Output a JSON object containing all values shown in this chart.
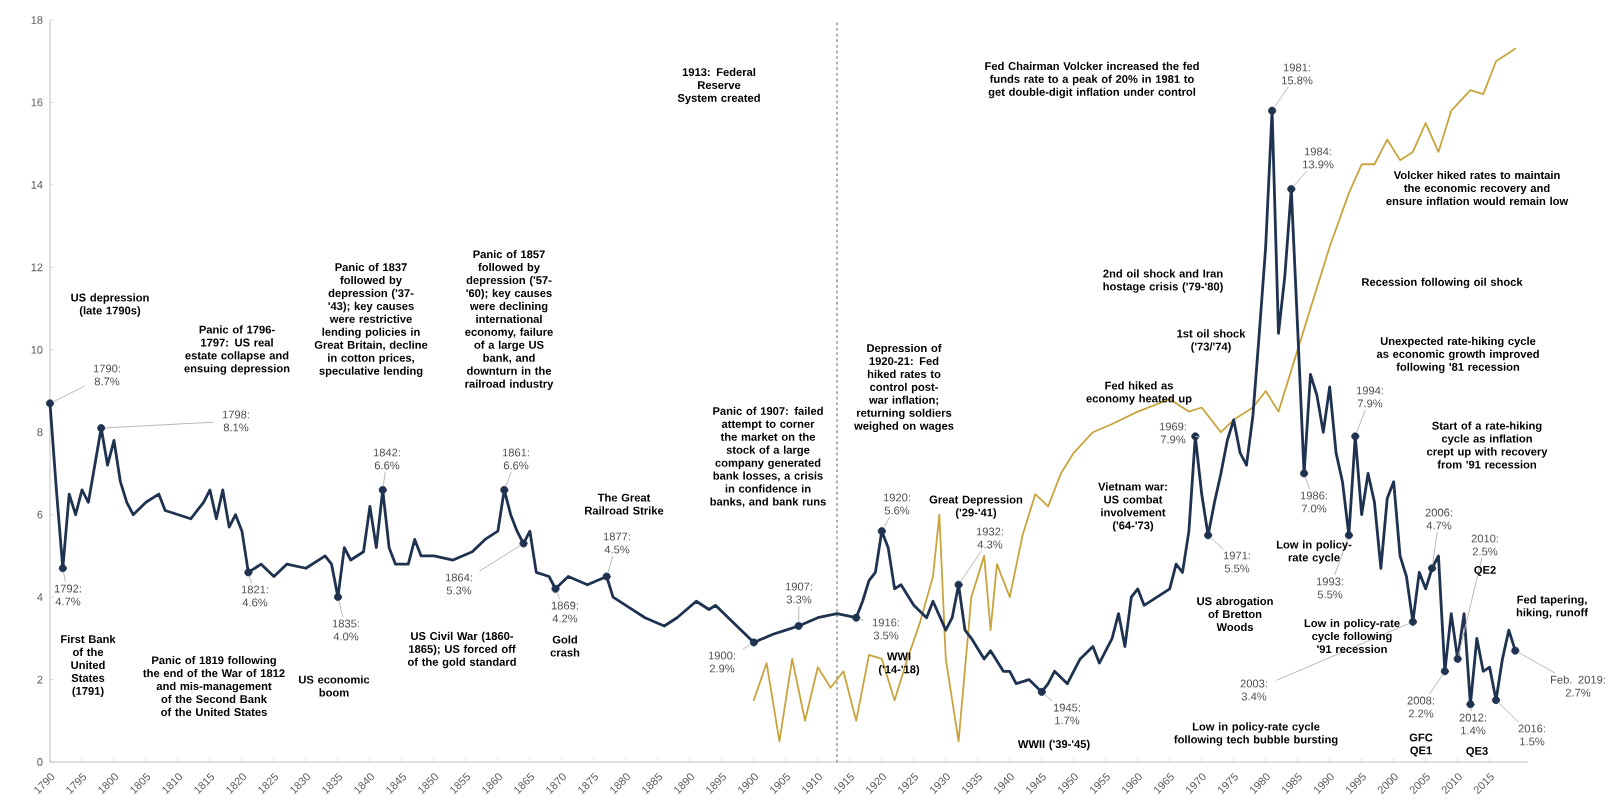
{
  "chart_data": {
    "type": "line",
    "xlim": [
      1790,
      2021
    ],
    "ylim": [
      0,
      18
    ],
    "xticks": [
      1790,
      1795,
      1800,
      1805,
      1810,
      1815,
      1820,
      1825,
      1830,
      1835,
      1840,
      1845,
      1850,
      1855,
      1860,
      1865,
      1870,
      1875,
      1880,
      1885,
      1890,
      1895,
      1900,
      1905,
      1910,
      1915,
      1920,
      1925,
      1930,
      1935,
      1940,
      1945,
      1950,
      1955,
      1960,
      1965,
      1970,
      1975,
      1980,
      1985,
      1990,
      1995,
      2000,
      2005,
      2010,
      2015
    ],
    "yticks": [
      0,
      2,
      4,
      6,
      8,
      10,
      12,
      14,
      16,
      18
    ],
    "series": [
      {
        "color": "#1f3350",
        "x": [
          1790,
          1791,
          1792,
          1793,
          1794,
          1795,
          1796,
          1797,
          1798,
          1799,
          1800,
          1801,
          1802,
          1803,
          1805,
          1807,
          1808,
          1810,
          1812,
          1814,
          1815,
          1816,
          1817,
          1818,
          1819,
          1820,
          1821,
          1823,
          1825,
          1827,
          1830,
          1833,
          1834,
          1835,
          1836,
          1837,
          1839,
          1840,
          1841,
          1842,
          1843,
          1844,
          1846,
          1847,
          1848,
          1850,
          1853,
          1856,
          1858,
          1860,
          1861,
          1862,
          1863,
          1864,
          1865,
          1866,
          1868,
          1869,
          1871,
          1874,
          1877,
          1878,
          1880,
          1883,
          1886,
          1888,
          1891,
          1893,
          1894,
          1896,
          1898,
          1900,
          1903,
          1905,
          1907,
          1910,
          1913,
          1916,
          1917,
          1918,
          1919,
          1920,
          1921,
          1922,
          1923,
          1925,
          1927,
          1928,
          1930,
          1931,
          1932,
          1933,
          1934,
          1936,
          1937,
          1939,
          1940,
          1941,
          1943,
          1945,
          1946,
          1947,
          1949,
          1951,
          1953,
          1954,
          1956,
          1957,
          1958,
          1959,
          1960,
          1961,
          1963,
          1965,
          1966,
          1967,
          1968,
          1969,
          1970,
          1971,
          1972,
          1973,
          1974,
          1975,
          1976,
          1977,
          1978,
          1979,
          1980,
          1981,
          1982,
          1983,
          1984,
          1985,
          1986,
          1987,
          1988,
          1989,
          1990,
          1991,
          1992,
          1993,
          1994,
          1995,
          1996,
          1997,
          1998,
          1999,
          2000,
          2001,
          2002,
          2003,
          2004,
          2005,
          2006,
          2007,
          2008,
          2009,
          2010,
          2011,
          2012,
          2013,
          2014,
          2015,
          2016,
          2017,
          2018,
          2019
        ],
        "values": [
          8.7,
          6.6,
          4.7,
          6.5,
          6.0,
          6.6,
          6.3,
          7.2,
          8.1,
          7.2,
          7.8,
          6.8,
          6.3,
          6.0,
          6.3,
          6.5,
          6.1,
          6.0,
          5.9,
          6.3,
          6.6,
          5.9,
          6.6,
          5.7,
          6.0,
          5.6,
          4.6,
          4.8,
          4.5,
          4.8,
          4.7,
          5.0,
          4.8,
          4.0,
          5.2,
          4.9,
          5.1,
          6.2,
          5.2,
          6.6,
          5.2,
          4.8,
          4.8,
          5.4,
          5.0,
          5.0,
          4.9,
          5.1,
          5.4,
          5.6,
          6.6,
          6.0,
          5.6,
          5.3,
          5.6,
          4.6,
          4.5,
          4.2,
          4.5,
          4.3,
          4.5,
          4.0,
          3.8,
          3.5,
          3.3,
          3.5,
          3.9,
          3.7,
          3.8,
          3.5,
          3.2,
          2.9,
          3.1,
          3.2,
          3.3,
          3.5,
          3.6,
          3.5,
          3.9,
          4.4,
          4.6,
          5.6,
          5.2,
          4.2,
          4.3,
          3.8,
          3.5,
          3.9,
          3.2,
          3.5,
          4.3,
          3.2,
          3.0,
          2.5,
          2.7,
          2.2,
          2.2,
          1.9,
          2.0,
          1.7,
          1.9,
          2.2,
          1.9,
          2.5,
          2.8,
          2.4,
          3.0,
          3.6,
          2.8,
          4.0,
          4.2,
          3.8,
          4.0,
          4.2,
          4.8,
          4.6,
          5.6,
          7.9,
          6.5,
          5.5,
          6.3,
          7.0,
          7.8,
          8.3,
          7.5,
          7.2,
          8.4,
          10.4,
          12.5,
          15.8,
          10.4,
          11.8,
          13.9,
          10.5,
          7.0,
          9.4,
          8.9,
          8.0,
          9.1,
          7.5,
          6.8,
          5.5,
          7.9,
          6.0,
          7.0,
          6.3,
          4.7,
          6.4,
          6.8,
          5.0,
          4.5,
          3.4,
          4.6,
          4.2,
          4.7,
          5.0,
          2.2,
          3.6,
          2.5,
          3.6,
          1.4,
          3.0,
          2.2,
          2.3,
          1.5,
          2.5,
          3.2,
          2.7
        ]
      },
      {
        "color": "#c9a43e",
        "x": [
          1900,
          1902,
          1904,
          1906,
          1908,
          1910,
          1912,
          1914,
          1916,
          1918,
          1920,
          1922,
          1924,
          1926,
          1928,
          1929,
          1930,
          1932,
          1934,
          1936,
          1937,
          1938,
          1940,
          1942,
          1944,
          1946,
          1948,
          1950,
          1953,
          1956,
          1960,
          1965,
          1968,
          1970,
          1973,
          1975,
          1978,
          1980,
          1982,
          1984,
          1987,
          1990,
          1993,
          1995,
          1997,
          1999,
          2001,
          2003,
          2005,
          2007,
          2009,
          2012,
          2014,
          2016,
          2019
        ],
        "values": [
          1.5,
          2.4,
          0.5,
          2.5,
          1.0,
          2.3,
          1.8,
          2.2,
          1.0,
          2.6,
          2.5,
          1.5,
          2.5,
          3.4,
          4.5,
          6.0,
          2.5,
          0.5,
          4.0,
          5.0,
          3.2,
          4.8,
          4.0,
          5.5,
          6.5,
          6.2,
          7.0,
          7.5,
          8.0,
          8.2,
          8.5,
          8.8,
          8.5,
          8.6,
          8.0,
          8.3,
          8.6,
          9.0,
          8.5,
          9.5,
          11.0,
          12.5,
          13.8,
          14.5,
          14.5,
          15.1,
          14.6,
          14.8,
          15.5,
          14.8,
          15.8,
          16.3,
          16.2,
          17.0,
          17.3
        ]
      }
    ],
    "ref_lines": [
      {
        "axis": "x",
        "value": 1913,
        "color": "#9a9a9a",
        "line_style": "dotted"
      }
    ],
    "annotations": [
      {
        "text": "1790: 8.7%",
        "x": 1790,
        "y": 8.7
      },
      {
        "text": "1792: 4.7%",
        "x": 1792,
        "y": 4.7
      },
      {
        "text": "1798: 8.1%",
        "x": 1798,
        "y": 8.1
      },
      {
        "text": "1821: 4.6%",
        "x": 1821,
        "y": 4.6
      },
      {
        "text": "1835: 4.0%",
        "x": 1835,
        "y": 4.0
      },
      {
        "text": "1842: 6.6%",
        "x": 1842,
        "y": 6.6
      },
      {
        "text": "1861: 6.6%",
        "x": 1861,
        "y": 6.6
      },
      {
        "text": "1864: 5.3%",
        "x": 1864,
        "y": 5.3
      },
      {
        "text": "1869: 4.2%",
        "x": 1869,
        "y": 4.2
      },
      {
        "text": "1877: 4.5%",
        "x": 1877,
        "y": 4.5
      },
      {
        "text": "1900: 2.9%",
        "x": 1900,
        "y": 2.9
      },
      {
        "text": "1907: 3.3%",
        "x": 1907,
        "y": 3.3
      },
      {
        "text": "1920: 5.6%",
        "x": 1920,
        "y": 5.6
      },
      {
        "text": "1916: 3.5%",
        "x": 1916,
        "y": 3.5
      },
      {
        "text": "1932: 4.3%",
        "x": 1932,
        "y": 4.3
      },
      {
        "text": "1945: 1.7%",
        "x": 1945,
        "y": 1.7
      },
      {
        "text": "1969: 7.9%",
        "x": 1969,
        "y": 7.9
      },
      {
        "text": "1971: 5.5%",
        "x": 1971,
        "y": 5.5
      },
      {
        "text": "1981: 15.8%",
        "x": 1981,
        "y": 15.8
      },
      {
        "text": "1984: 13.9%",
        "x": 1984,
        "y": 13.9
      },
      {
        "text": "1986: 7.0%",
        "x": 1986,
        "y": 7.0
      },
      {
        "text": "1994: 7.9%",
        "x": 1994,
        "y": 7.9
      },
      {
        "text": "1993: 5.5%",
        "x": 1993,
        "y": 5.5
      },
      {
        "text": "2003: 3.4%",
        "x": 2003,
        "y": 3.4
      },
      {
        "text": "2006: 4.7%",
        "x": 2006,
        "y": 4.7
      },
      {
        "text": "2008: 2.2%",
        "x": 2008,
        "y": 2.2
      },
      {
        "text": "2010: 2.5%",
        "x": 2010,
        "y": 2.5
      },
      {
        "text": "2012: 1.4%",
        "x": 2012,
        "y": 1.4
      },
      {
        "text": "2016: 1.5%",
        "x": 2016,
        "y": 1.5
      },
      {
        "text": "Feb. 2019: 2.7%",
        "x": 2019,
        "y": 2.7
      },
      "US depression (late 1790s)",
      "First Bank of the United States (1791)",
      "Panic of 1796-1797: US real estate collapse and ensuing depression",
      "Panic of 1819 following the end of the War of 1812 and mis-management of the Second Bank of the United States",
      "US economic boom",
      "Panic of 1837 followed by depression ('37-'43); key causes were restrictive lending policies in Great Britain, decline in cotton prices, speculative lending",
      "Panic of 1857 followed by depression ('57-'60); key causes were declining international economy, failure of a large US bank, and downturn in the railroad industry",
      "US Civil War (1860-1865); US forced off of the gold standard",
      "Gold crash",
      "The Great Railroad Strike",
      "Panic of 1907: failed attempt to corner the market on the stock of a large company generated bank losses, a crisis in confidence in banks, and bank runs",
      "1913: Federal Reserve System created",
      "Depression of 1920-21: Fed hiked rates to control post-war inflation; returning soldiers weighed on wages",
      "WWI ('14-'18)",
      "Great Depression ('29-'41)",
      "WWII ('39-'45)",
      "Vietnam war: US combat involvement ('64-'73)",
      "Fed hiked as economy heated up",
      "US abrogation of Bretton Woods",
      "1st oil shock ('73/'74)",
      "2nd oil shock and Iran hostage crisis ('79-'80)",
      "Fed Chairman Volcker increased the fed funds rate to a peak of 20% in 1981 to get double-digit inflation under control",
      "Volcker hiked rates to maintain the economic recovery and ensure inflation would remain low",
      "Recession following oil shock",
      "Unexpected rate-hiking cycle as economic growth improved following '81 recession",
      "Low in policy-rate cycle",
      "Start of a rate-hiking cycle as inflation crept up with recovery from '91 recession",
      "Low in policy-rate cycle following '91 recession",
      "Low in policy-rate cycle following tech bubble bursting",
      "GFC QE1",
      "QE2",
      "QE3",
      "Fed tapering, hiking, runoff"
    ]
  }
}
